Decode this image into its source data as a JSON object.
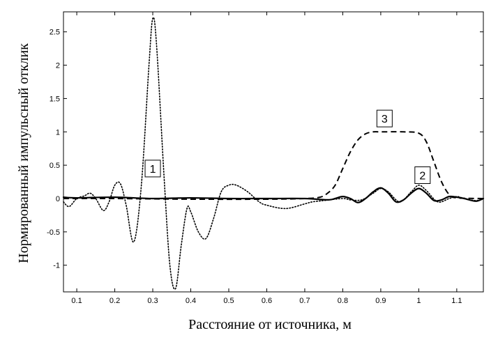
{
  "chart_data": {
    "type": "line",
    "xlabel": "Расстояние от источника, м",
    "ylabel": "Нормированный импульсный отклик",
    "xlim": [
      0.065,
      1.17
    ],
    "ylim": [
      -1.4,
      2.8
    ],
    "xticks": [
      "0.1",
      "0.2",
      "0.3",
      "0.4",
      "0.5",
      "0.6",
      "0.7",
      "0.8",
      "0.9",
      "1",
      "1.1"
    ],
    "xtick_values": [
      0.1,
      0.2,
      0.3,
      0.4,
      0.5,
      0.6,
      0.7,
      0.8,
      0.9,
      1.0,
      1.1
    ],
    "yticks": [
      "-1",
      "-0.5",
      "0",
      "0.5",
      "1",
      "1.5",
      "2",
      "2.5"
    ],
    "ytick_values": [
      -1,
      -0.5,
      0,
      0.5,
      1,
      1.5,
      2,
      2.5
    ],
    "grid": false,
    "series": [
      {
        "name": "1",
        "style": "dotted",
        "label_at": [
          0.3,
          0.45
        ],
        "x": [
          0.065,
          0.08,
          0.1,
          0.12,
          0.135,
          0.15,
          0.17,
          0.185,
          0.2,
          0.215,
          0.23,
          0.25,
          0.27,
          0.29,
          0.3,
          0.31,
          0.33,
          0.345,
          0.36,
          0.375,
          0.39,
          0.4,
          0.42,
          0.44,
          0.46,
          0.48,
          0.5,
          0.52,
          0.55,
          0.58,
          0.6,
          0.65,
          0.7,
          0.72,
          0.75,
          0.8,
          0.82,
          0.85,
          0.88,
          0.9,
          0.92,
          0.95,
          0.98,
          1.0,
          1.02,
          1.05,
          1.08,
          1.1,
          1.12,
          1.15,
          1.17
        ],
        "y": [
          -0.05,
          -0.12,
          0.0,
          0.04,
          0.08,
          0.0,
          -0.18,
          -0.05,
          0.2,
          0.22,
          -0.1,
          -0.65,
          0.2,
          2.0,
          2.7,
          2.3,
          0.3,
          -1.0,
          -1.35,
          -0.7,
          -0.15,
          -0.2,
          -0.5,
          -0.6,
          -0.3,
          0.1,
          0.2,
          0.2,
          0.1,
          -0.05,
          -0.1,
          -0.15,
          -0.08,
          -0.05,
          -0.03,
          0.0,
          -0.02,
          -0.02,
          0.08,
          0.15,
          0.1,
          -0.05,
          0.1,
          0.2,
          0.12,
          -0.05,
          0.0,
          0.03,
          0.0,
          -0.03,
          0.0
        ]
      },
      {
        "name": "2",
        "style": "solid",
        "label_at": [
          1.01,
          0.35
        ],
        "x": [
          0.065,
          0.1,
          0.2,
          0.3,
          0.4,
          0.5,
          0.6,
          0.7,
          0.76,
          0.78,
          0.8,
          0.82,
          0.84,
          0.86,
          0.88,
          0.9,
          0.92,
          0.94,
          0.96,
          0.98,
          1.0,
          1.02,
          1.04,
          1.06,
          1.08,
          1.1,
          1.12,
          1.15,
          1.17
        ],
        "y": [
          0.02,
          0.01,
          0.02,
          0.0,
          0.01,
          0.0,
          0.0,
          0.0,
          -0.02,
          0.0,
          0.03,
          0.0,
          -0.06,
          0.0,
          0.1,
          0.16,
          0.08,
          -0.05,
          -0.02,
          0.08,
          0.15,
          0.08,
          -0.03,
          -0.02,
          0.03,
          0.02,
          0.0,
          -0.04,
          0.0
        ]
      },
      {
        "name": "3",
        "style": "dashed",
        "label_at": [
          0.91,
          1.2
        ],
        "x": [
          0.065,
          0.2,
          0.4,
          0.6,
          0.7,
          0.74,
          0.76,
          0.78,
          0.8,
          0.82,
          0.84,
          0.86,
          0.88,
          0.9,
          0.96,
          1.0,
          1.02,
          1.04,
          1.06,
          1.08,
          1.1,
          1.17
        ],
        "y": [
          0.0,
          0.0,
          -0.01,
          -0.01,
          0.0,
          0.02,
          0.08,
          0.2,
          0.45,
          0.7,
          0.88,
          0.97,
          1.0,
          1.0,
          1.0,
          0.98,
          0.85,
          0.55,
          0.25,
          0.06,
          0.01,
          0.0
        ]
      }
    ]
  }
}
